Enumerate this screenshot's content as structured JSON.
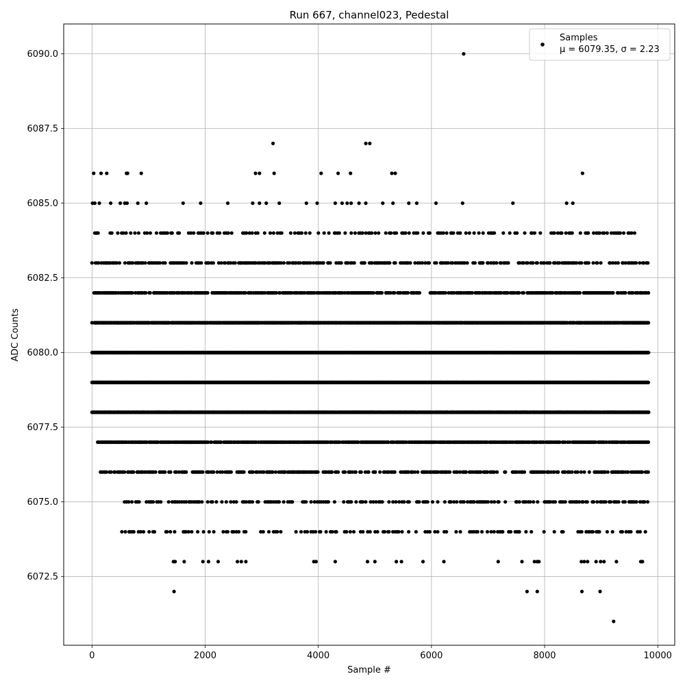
{
  "chart_data": {
    "type": "scatter",
    "title": "Run 667, channel023, Pedestal",
    "xlabel": "Sample #",
    "ylabel": "ADC Counts",
    "xlim": [
      -500,
      10300
    ],
    "ylim": [
      6070.2,
      6091.0
    ],
    "x_ticks": [
      0,
      2000,
      4000,
      6000,
      8000,
      10000
    ],
    "x_tick_labels": [
      "0",
      "2000",
      "4000",
      "6000",
      "8000",
      "10000"
    ],
    "y_ticks": [
      6072.5,
      6075.0,
      6077.5,
      6080.0,
      6082.5,
      6085.0,
      6087.5,
      6090.0
    ],
    "y_tick_labels": [
      "6072.5",
      "6075.0",
      "6077.5",
      "6080.0",
      "6082.5",
      "6085.0",
      "6087.5",
      "6090.0"
    ],
    "grid": true,
    "legend": {
      "placement": "top-right",
      "entries": [
        {
          "label": "Samples",
          "sublabel": "μ = 6079.35, σ = 2.23"
        }
      ]
    },
    "series": [
      {
        "name": "Samples",
        "color": "#000000",
        "levels": [
          {
            "y": 6079.0,
            "x_range": [
              0,
              9840
            ]
          },
          {
            "y": 6080.0,
            "x_range": [
              0,
              9840
            ]
          },
          {
            "y": 6081.0,
            "x_range": [
              0,
              9840
            ]
          },
          {
            "y": 6078.0,
            "x_range": [
              0,
              9840
            ]
          },
          {
            "y": 6082.0,
            "x_range": [
              0,
              9840
            ]
          },
          {
            "y": 6077.0,
            "x_range": [
              100,
              9840
            ]
          },
          {
            "y": 6083.0,
            "x_range": [
              0,
              9840
            ]
          },
          {
            "y": 6076.0,
            "x_range": [
              150,
              9840
            ]
          },
          {
            "y": 6084.0,
            "x_range": [
              0,
              9680
            ]
          },
          {
            "y": 6075.0,
            "x_range": [
              560,
              9840
            ]
          },
          {
            "y": 6074.0,
            "x_range": [
              450,
              9840
            ]
          }
        ],
        "points": [
          [
            10,
            6085
          ],
          [
            50,
            6085
          ],
          [
            130,
            6085
          ],
          [
            330,
            6085
          ],
          [
            500,
            6085
          ],
          [
            580,
            6085
          ],
          [
            620,
            6085
          ],
          [
            810,
            6085
          ],
          [
            960,
            6085
          ],
          [
            1610,
            6085
          ],
          [
            1920,
            6085
          ],
          [
            2400,
            6085
          ],
          [
            2840,
            6085
          ],
          [
            2960,
            6085
          ],
          [
            3080,
            6085
          ],
          [
            3310,
            6085
          ],
          [
            3790,
            6085
          ],
          [
            3980,
            6085
          ],
          [
            4300,
            6085
          ],
          [
            4420,
            6085
          ],
          [
            4510,
            6085
          ],
          [
            4580,
            6085
          ],
          [
            4720,
            6085
          ],
          [
            4840,
            6085
          ],
          [
            5140,
            6085
          ],
          [
            5320,
            6085
          ],
          [
            5600,
            6085
          ],
          [
            5740,
            6085
          ],
          [
            6080,
            6085
          ],
          [
            6550,
            6085
          ],
          [
            7440,
            6085
          ],
          [
            8390,
            6085
          ],
          [
            8500,
            6085
          ],
          [
            30,
            6086
          ],
          [
            160,
            6086
          ],
          [
            260,
            6086
          ],
          [
            610,
            6086
          ],
          [
            630,
            6086
          ],
          [
            870,
            6086
          ],
          [
            2890,
            6086
          ],
          [
            2960,
            6086
          ],
          [
            3220,
            6086
          ],
          [
            4050,
            6086
          ],
          [
            4350,
            6086
          ],
          [
            4570,
            6086
          ],
          [
            5300,
            6086
          ],
          [
            5360,
            6086
          ],
          [
            8670,
            6086
          ],
          [
            3200,
            6087
          ],
          [
            4840,
            6087
          ],
          [
            4910,
            6087
          ],
          [
            6570,
            6090
          ],
          [
            1440,
            6073
          ],
          [
            1470,
            6073
          ],
          [
            1630,
            6073
          ],
          [
            1960,
            6073
          ],
          [
            2060,
            6073
          ],
          [
            2230,
            6073
          ],
          [
            2570,
            6073
          ],
          [
            2640,
            6073
          ],
          [
            2720,
            6073
          ],
          [
            3920,
            6073
          ],
          [
            3960,
            6073
          ],
          [
            4300,
            6073
          ],
          [
            4870,
            6073
          ],
          [
            5000,
            6073
          ],
          [
            5380,
            6073
          ],
          [
            5470,
            6073
          ],
          [
            5850,
            6073
          ],
          [
            6220,
            6073
          ],
          [
            7180,
            6073
          ],
          [
            7600,
            6073
          ],
          [
            7820,
            6073
          ],
          [
            7870,
            6073
          ],
          [
            7900,
            6073
          ],
          [
            8650,
            6073
          ],
          [
            8700,
            6073
          ],
          [
            8760,
            6073
          ],
          [
            8910,
            6073
          ],
          [
            8990,
            6073
          ],
          [
            9050,
            6073
          ],
          [
            9270,
            6073
          ],
          [
            9700,
            6073
          ],
          [
            9730,
            6073
          ],
          [
            1450,
            6072
          ],
          [
            7690,
            6072
          ],
          [
            7870,
            6072
          ],
          [
            8660,
            6072
          ],
          [
            8980,
            6072
          ],
          [
            9220,
            6071
          ]
        ]
      }
    ]
  }
}
